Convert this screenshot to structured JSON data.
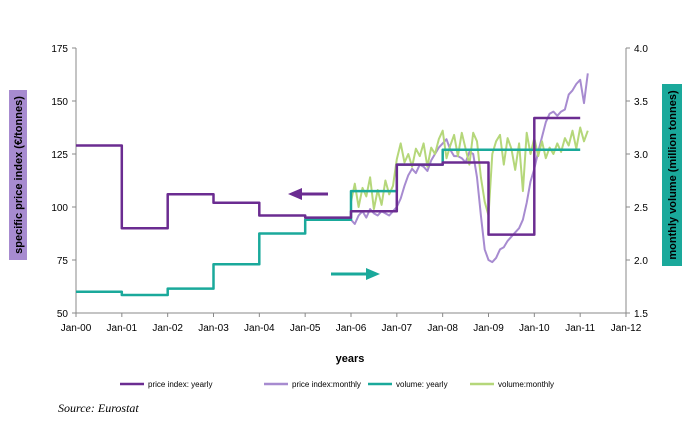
{
  "chart_data": {
    "type": "line",
    "xlabel": "years",
    "ylabel_left": "specific price index (€/tonnes)",
    "ylabel_right": "monthly volume (million tonnes)",
    "source": "Source: Eurostat",
    "x_ticks": [
      "Jan-00",
      "Jan-01",
      "Jan-02",
      "Jan-03",
      "Jan-04",
      "Jan-05",
      "Jan-06",
      "Jan-07",
      "Jan-08",
      "Jan-09",
      "Jan-10",
      "Jan-11",
      "Jan-12"
    ],
    "x_range_years": [
      2000,
      2012
    ],
    "y_left_ticks": [
      "175",
      "150",
      "125",
      "100",
      "75",
      "50"
    ],
    "y_left_range": [
      50,
      175
    ],
    "y_right_ticks": [
      "4.0",
      "3.5",
      "3.0",
      "2.5",
      "2.0",
      "1.5"
    ],
    "y_right_range": [
      1.5,
      4.0
    ],
    "colors": {
      "price_yearly": "#6B2C91",
      "price_monthly": "#A78BD0",
      "volume_yearly": "#1AA99B",
      "volume_monthly": "#B5D77A",
      "left_label_bg": "#A78BD0",
      "right_label_bg": "#1AA99B"
    },
    "series": [
      {
        "name": "price index: yearly",
        "axis": "left",
        "style": "step",
        "points": [
          [
            "2000-01",
            129
          ],
          [
            "2001-01",
            90
          ],
          [
            "2002-01",
            106
          ],
          [
            "2003-01",
            102
          ],
          [
            "2004-01",
            96
          ],
          [
            "2005-01",
            95
          ],
          [
            "2006-01",
            98
          ],
          [
            "2007-01",
            120
          ],
          [
            "2008-01",
            121
          ],
          [
            "2009-01",
            87
          ],
          [
            "2010-01",
            142
          ],
          [
            "2011-01",
            142
          ]
        ]
      },
      {
        "name": "price index:monthly",
        "axis": "left",
        "style": "line",
        "points": [
          [
            "2006-01",
            94
          ],
          [
            "2006-02",
            92
          ],
          [
            "2006-03",
            96
          ],
          [
            "2006-04",
            98
          ],
          [
            "2006-05",
            95
          ],
          [
            "2006-06",
            99
          ],
          [
            "2006-07",
            97
          ],
          [
            "2006-08",
            96
          ],
          [
            "2006-09",
            98
          ],
          [
            "2006-10",
            97
          ],
          [
            "2006-11",
            96
          ],
          [
            "2006-12",
            98
          ],
          [
            "2007-01",
            100
          ],
          [
            "2007-02",
            104
          ],
          [
            "2007-03",
            110
          ],
          [
            "2007-04",
            115
          ],
          [
            "2007-05",
            118
          ],
          [
            "2007-06",
            116
          ],
          [
            "2007-07",
            120
          ],
          [
            "2007-08",
            119
          ],
          [
            "2007-09",
            117
          ],
          [
            "2007-10",
            122
          ],
          [
            "2007-11",
            125
          ],
          [
            "2007-12",
            128
          ],
          [
            "2008-01",
            130
          ],
          [
            "2008-02",
            132
          ],
          [
            "2008-03",
            127
          ],
          [
            "2008-04",
            124
          ],
          [
            "2008-05",
            124
          ],
          [
            "2008-06",
            123
          ],
          [
            "2008-07",
            121
          ],
          [
            "2008-08",
            126
          ],
          [
            "2008-09",
            125
          ],
          [
            "2008-10",
            114
          ],
          [
            "2008-11",
            96
          ],
          [
            "2008-12",
            80
          ],
          [
            "2009-01",
            75
          ],
          [
            "2009-02",
            74
          ],
          [
            "2009-03",
            76
          ],
          [
            "2009-04",
            80
          ],
          [
            "2009-05",
            81
          ],
          [
            "2009-06",
            84
          ],
          [
            "2009-07",
            86
          ],
          [
            "2009-08",
            88
          ],
          [
            "2009-09",
            90
          ],
          [
            "2009-10",
            94
          ],
          [
            "2009-11",
            102
          ],
          [
            "2009-12",
            112
          ],
          [
            "2010-01",
            118
          ],
          [
            "2010-02",
            126
          ],
          [
            "2010-03",
            133
          ],
          [
            "2010-04",
            140
          ],
          [
            "2010-05",
            144
          ],
          [
            "2010-06",
            145
          ],
          [
            "2010-07",
            143
          ],
          [
            "2010-08",
            145
          ],
          [
            "2010-09",
            146
          ],
          [
            "2010-10",
            153
          ],
          [
            "2010-11",
            155
          ],
          [
            "2010-12",
            158
          ],
          [
            "2011-01",
            160
          ],
          [
            "2011-02",
            149
          ],
          [
            "2011-03",
            163
          ]
        ]
      },
      {
        "name": "volume: yearly",
        "axis": "right",
        "style": "step",
        "points": [
          [
            "2000-01",
            1.7
          ],
          [
            "2001-01",
            1.67
          ],
          [
            "2002-01",
            1.73
          ],
          [
            "2003-01",
            1.96
          ],
          [
            "2004-01",
            2.25
          ],
          [
            "2005-01",
            2.38
          ],
          [
            "2006-01",
            2.65
          ],
          [
            "2007-01",
            2.9
          ],
          [
            "2008-01",
            3.04
          ],
          [
            "2009-01",
            3.04
          ],
          [
            "2010-01",
            3.04
          ],
          [
            "2011-01",
            3.04
          ]
        ]
      },
      {
        "name": "volume:monthly",
        "axis": "right",
        "style": "line",
        "points": [
          [
            "2006-01",
            2.55
          ],
          [
            "2006-02",
            2.72
          ],
          [
            "2006-03",
            2.5
          ],
          [
            "2006-04",
            2.68
          ],
          [
            "2006-05",
            2.6
          ],
          [
            "2006-06",
            2.78
          ],
          [
            "2006-07",
            2.48
          ],
          [
            "2006-08",
            2.66
          ],
          [
            "2006-09",
            2.52
          ],
          [
            "2006-10",
            2.75
          ],
          [
            "2006-11",
            2.62
          ],
          [
            "2006-12",
            2.7
          ],
          [
            "2007-01",
            2.95
          ],
          [
            "2007-02",
            3.1
          ],
          [
            "2007-03",
            2.92
          ],
          [
            "2007-04",
            3.0
          ],
          [
            "2007-05",
            2.88
          ],
          [
            "2007-06",
            3.05
          ],
          [
            "2007-07",
            2.98
          ],
          [
            "2007-08",
            3.1
          ],
          [
            "2007-09",
            2.88
          ],
          [
            "2007-10",
            3.06
          ],
          [
            "2007-11",
            3.0
          ],
          [
            "2007-12",
            3.14
          ],
          [
            "2008-01",
            3.22
          ],
          [
            "2008-02",
            2.96
          ],
          [
            "2008-03",
            3.08
          ],
          [
            "2008-04",
            3.18
          ],
          [
            "2008-05",
            2.98
          ],
          [
            "2008-06",
            3.2
          ],
          [
            "2008-07",
            3.05
          ],
          [
            "2008-08",
            2.9
          ],
          [
            "2008-09",
            3.2
          ],
          [
            "2008-10",
            3.12
          ],
          [
            "2008-11",
            2.78
          ],
          [
            "2008-12",
            2.55
          ],
          [
            "2009-01",
            2.42
          ],
          [
            "2009-02",
            3.0
          ],
          [
            "2009-03",
            3.12
          ],
          [
            "2009-04",
            3.18
          ],
          [
            "2009-05",
            2.9
          ],
          [
            "2009-06",
            3.15
          ],
          [
            "2009-07",
            3.05
          ],
          [
            "2009-08",
            2.85
          ],
          [
            "2009-09",
            3.1
          ],
          [
            "2009-10",
            2.65
          ],
          [
            "2009-11",
            3.2
          ],
          [
            "2009-12",
            3.0
          ],
          [
            "2010-01",
            3.15
          ],
          [
            "2010-02",
            2.98
          ],
          [
            "2010-03",
            3.12
          ],
          [
            "2010-04",
            2.96
          ],
          [
            "2010-05",
            3.06
          ],
          [
            "2010-06",
            3.0
          ],
          [
            "2010-07",
            3.1
          ],
          [
            "2010-08",
            3.02
          ],
          [
            "2010-09",
            3.15
          ],
          [
            "2010-10",
            3.08
          ],
          [
            "2010-11",
            3.22
          ],
          [
            "2010-12",
            3.05
          ],
          [
            "2011-01",
            3.25
          ],
          [
            "2011-02",
            3.12
          ],
          [
            "2011-03",
            3.22
          ]
        ]
      }
    ],
    "legend": [
      {
        "label": "price index: yearly",
        "color": "#6B2C91"
      },
      {
        "label": "price index:monthly",
        "color": "#A78BD0"
      },
      {
        "label": "volume: yearly",
        "color": "#1AA99B"
      },
      {
        "label": "volume:monthly",
        "color": "#B5D77A"
      }
    ],
    "legend_position": "bottom",
    "grid": false,
    "annotations": [
      {
        "type": "arrow",
        "direction": "left",
        "color": "#6B2C91",
        "meaning": "left axis"
      },
      {
        "type": "arrow",
        "direction": "right",
        "color": "#1AA99B",
        "meaning": "right axis"
      }
    ]
  }
}
